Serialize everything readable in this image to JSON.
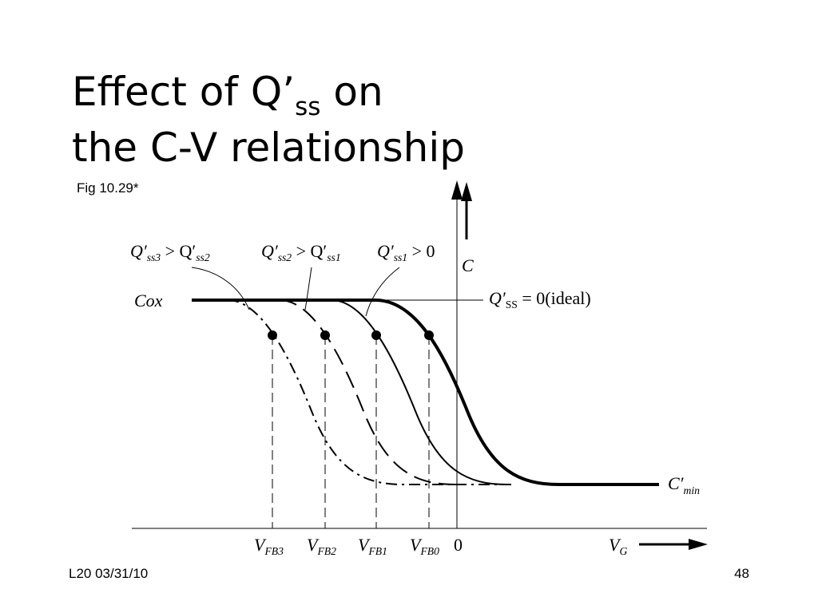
{
  "title": {
    "lines": [
      [
        "Effect of Q’",
        "ss",
        " on"
      ],
      [
        "the C-V relationship"
      ]
    ]
  },
  "figure_ref": "Fig 10.29*",
  "diagram": {
    "annotations": [
      [
        "Q′",
        "ss3",
        " > Q′",
        "ss2"
      ],
      [
        "Q′",
        "ss2",
        " > Q′",
        "ss1"
      ],
      [
        "Q′",
        "ss1",
        " > 0"
      ]
    ],
    "cox": "Cox",
    "c_axis": "C",
    "ideal": [
      "Q′",
      "SS",
      " = 0(ideal)"
    ],
    "cmin": [
      "C′",
      "min"
    ],
    "vfb": [
      [
        "V",
        "FB3"
      ],
      [
        "V",
        "FB2"
      ],
      [
        "V",
        "FB1"
      ],
      [
        "V",
        "FB0"
      ]
    ],
    "origin": "0",
    "vg_axis": [
      "V",
      "G"
    ]
  },
  "footer": {
    "left": "L20 03/31/10",
    "right": "48"
  }
}
